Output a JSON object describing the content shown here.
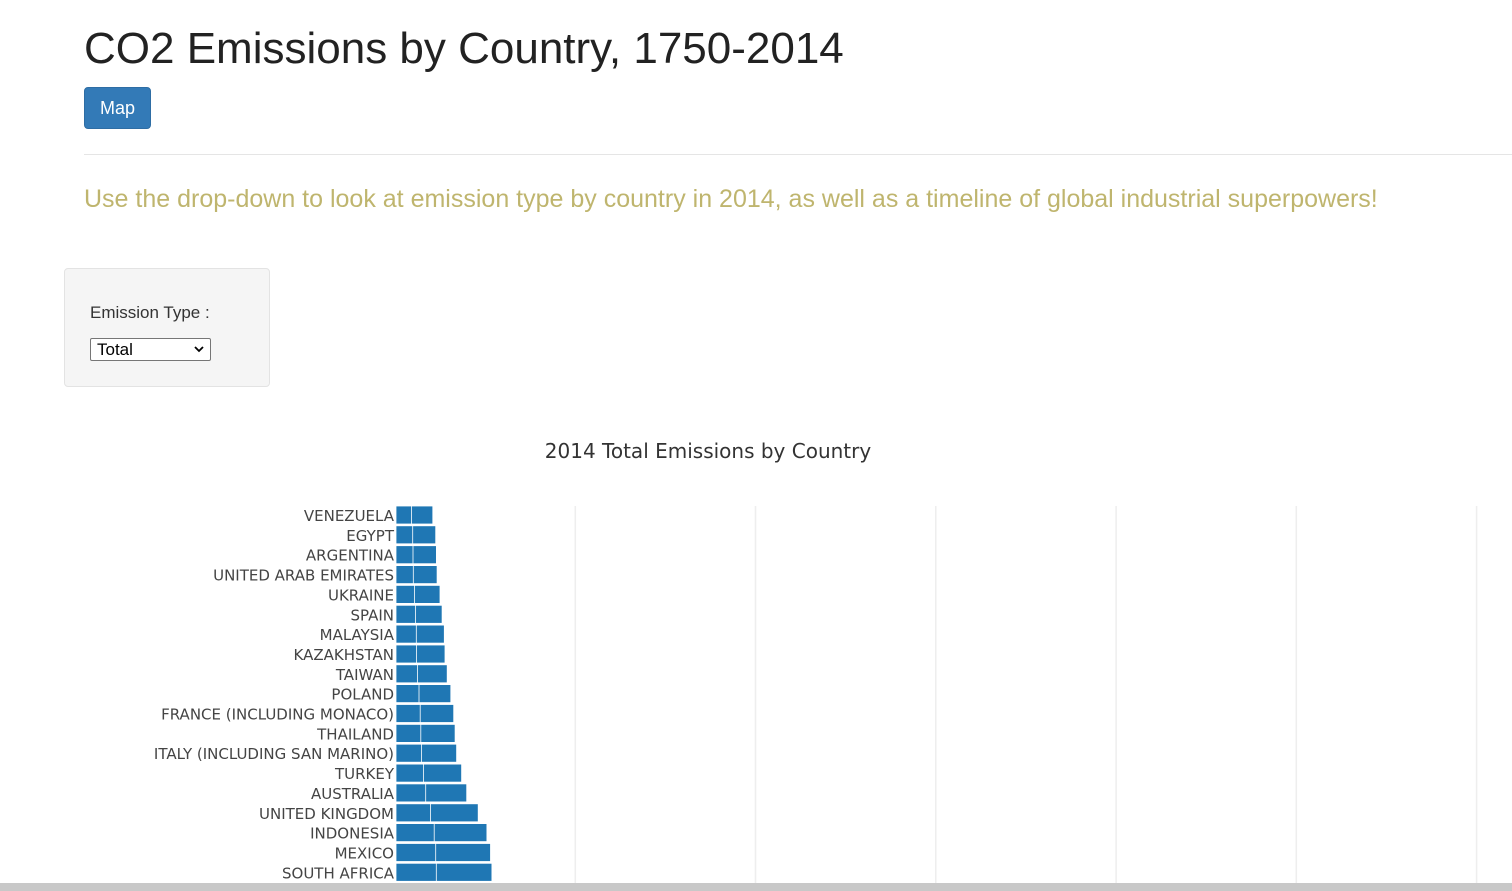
{
  "page": {
    "title": "CO2 Emissions by Country, 1750-2014",
    "map_button_label": "Map",
    "intro": "Use the drop-down to look at emission type by country in 2014, as well as a timeline of global industrial superpowers!"
  },
  "filter": {
    "label": "Emission Type :",
    "selected": "Total",
    "icon": "chevron-down-icon"
  },
  "colors": {
    "bar": "#1f77b4",
    "intro_text": "#bfb56e",
    "button": "#337ab7"
  },
  "chart_data": {
    "type": "bar",
    "orientation": "horizontal",
    "title": "2014 Total Emissions by Country",
    "categories": [
      "VENEZUELA",
      "EGYPT",
      "ARGENTINA",
      "UNITED ARAB EMIRATES",
      "UKRAINE",
      "SPAIN",
      "MALAYSIA",
      "KAZAKHSTAN",
      "TAIWAN",
      "POLAND",
      "FRANCE (INCLUDING MONACO)",
      "THAILAND",
      "ITALY (INCLUDING SAN MARINO)",
      "TURKEY",
      "AUSTRALIA",
      "UNITED KINGDOM",
      "INDONESIA",
      "MEXICO",
      "SOUTH AFRICA"
    ],
    "values": [
      51,
      55,
      56,
      57,
      61,
      64,
      67,
      68,
      71,
      76,
      80,
      82,
      84,
      91,
      98,
      114,
      126,
      131,
      133
    ],
    "xlim": [
      0,
      1900
    ],
    "grid": true
  }
}
